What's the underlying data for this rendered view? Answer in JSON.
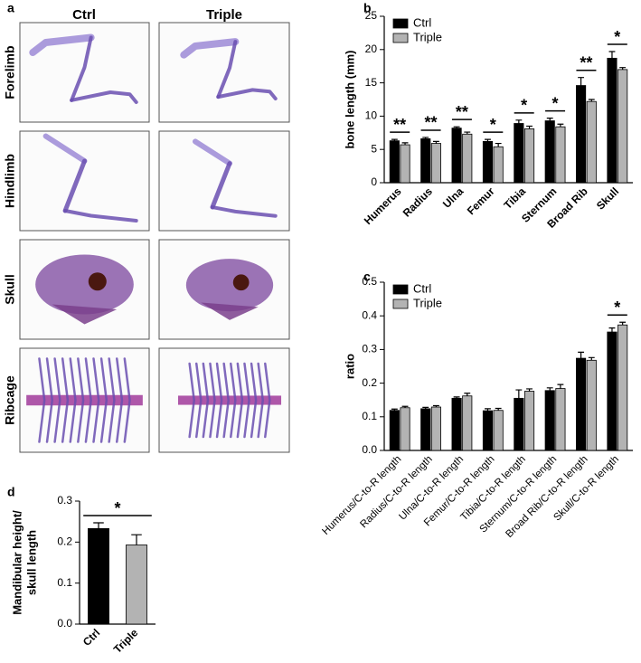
{
  "panel_a": {
    "label": "a",
    "columns": [
      "Ctrl",
      "Triple"
    ],
    "rows": [
      "Forelimb",
      "Hindlimb",
      "Skull",
      "Ribcage"
    ]
  },
  "chart_data": [
    {
      "panel": "b",
      "type": "bar",
      "ylabel": "bone length (mm)",
      "categories": [
        "Humerus",
        "Radius",
        "Ulna",
        "Femur",
        "Tibia",
        "Sternum",
        "Broad Rib",
        "Skull"
      ],
      "series": [
        {
          "name": "Ctrl",
          "color": "#000000",
          "values": [
            6.3,
            6.6,
            8.2,
            6.2,
            8.9,
            9.3,
            14.6,
            18.7
          ],
          "errors": [
            0.2,
            0.2,
            0.2,
            0.3,
            0.5,
            0.4,
            1.2,
            1.0
          ]
        },
        {
          "name": "Triple",
          "color": "#b3b3b3",
          "values": [
            5.7,
            5.9,
            7.3,
            5.4,
            8.1,
            8.4,
            12.2,
            17.0
          ],
          "errors": [
            0.3,
            0.3,
            0.3,
            0.5,
            0.4,
            0.4,
            0.3,
            0.3
          ]
        }
      ],
      "annotations": [
        "**",
        "**",
        "**",
        "*",
        "*",
        "*",
        "**",
        "*"
      ],
      "ylim": [
        0,
        25
      ],
      "yticks": [
        0,
        5,
        10,
        15,
        20,
        25
      ],
      "legend": "upper left"
    },
    {
      "panel": "c",
      "type": "bar",
      "ylabel": "ratio",
      "categories": [
        "Humerus/C-to-R length",
        "Radius/C-to-R length",
        "Ulna/C-to-R length",
        "Femur/C-to-R length",
        "Tibia/C-to-R length",
        "Sternum/C-to-R length",
        "Broad Rib/C-to-R length",
        "Skull/C-to-R length"
      ],
      "series": [
        {
          "name": "Ctrl",
          "color": "#000000",
          "values": [
            0.119,
            0.124,
            0.155,
            0.118,
            0.155,
            0.178,
            0.274,
            0.352
          ],
          "errors": [
            0.004,
            0.004,
            0.004,
            0.006,
            0.025,
            0.008,
            0.018,
            0.012
          ]
        },
        {
          "name": "Triple",
          "color": "#b3b3b3",
          "values": [
            0.127,
            0.129,
            0.162,
            0.119,
            0.176,
            0.184,
            0.268,
            0.373
          ],
          "errors": [
            0.004,
            0.004,
            0.008,
            0.006,
            0.007,
            0.012,
            0.008,
            0.008
          ]
        }
      ],
      "annotations": [
        null,
        null,
        null,
        null,
        null,
        null,
        null,
        "*"
      ],
      "ylim": [
        0,
        0.5
      ],
      "yticks": [
        {
          "value": 0,
          "label": "0.0"
        },
        0.1,
        0.2,
        0.3,
        0.4,
        0.5
      ],
      "legend": "upper left"
    },
    {
      "panel": "d",
      "type": "bar",
      "ylabel": [
        "Mandibular height/",
        "skull length"
      ],
      "categories": [
        "Ctrl",
        "Triple"
      ],
      "values": [
        0.233,
        0.193
      ],
      "errors": [
        0.014,
        0.025
      ],
      "colors": [
        "#000000",
        "#b3b3b3"
      ],
      "annotation": "*",
      "ylim": [
        0,
        0.3
      ],
      "yticks": [
        {
          "value": 0,
          "label": "0.0"
        },
        0.1,
        0.2,
        0.3
      ]
    }
  ]
}
